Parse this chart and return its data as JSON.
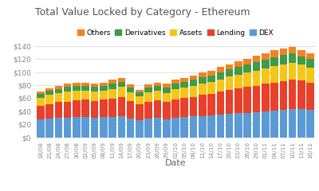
{
  "title": "Total Value Locked by Category - Ethereum",
  "xlabel": "Date",
  "categories": [
    "18/08",
    "21/08",
    "24/08",
    "27/08",
    "30/08",
    "02/09",
    "05/09",
    "08/09",
    "11/09",
    "14/09",
    "17/09",
    "20/09",
    "23/09",
    "26/09",
    "29/09",
    "02/10",
    "05/10",
    "08/10",
    "11/10",
    "14/10",
    "17/10",
    "20/10",
    "23/10",
    "26/10",
    "29/10",
    "01/11",
    "04/11",
    "07/11",
    "10/11",
    "13/11",
    "16/11"
  ],
  "series": {
    "DEX": [
      28,
      29,
      30,
      30,
      31,
      31,
      30,
      31,
      31,
      32,
      29,
      27,
      29,
      30,
      28,
      30,
      31,
      32,
      33,
      34,
      35,
      36,
      37,
      38,
      39,
      40,
      41,
      42,
      44,
      43,
      42
    ],
    "Lending": [
      20,
      22,
      24,
      25,
      26,
      27,
      26,
      27,
      28,
      30,
      27,
      24,
      26,
      27,
      26,
      28,
      29,
      30,
      32,
      33,
      35,
      37,
      38,
      39,
      40,
      42,
      43,
      44,
      45,
      44,
      42
    ],
    "Assets": [
      13,
      14,
      14,
      15,
      15,
      14,
      14,
      14,
      15,
      15,
      13,
      12,
      14,
      14,
      14,
      16,
      16,
      17,
      17,
      18,
      19,
      20,
      21,
      22,
      23,
      24,
      25,
      26,
      25,
      24,
      23
    ],
    "Derivatives": [
      5,
      6,
      6,
      7,
      7,
      7,
      7,
      7,
      8,
      8,
      7,
      6,
      7,
      8,
      8,
      8,
      9,
      9,
      10,
      10,
      11,
      11,
      12,
      12,
      13,
      13,
      14,
      14,
      14,
      13,
      13
    ],
    "Others": [
      4,
      4,
      5,
      5,
      5,
      5,
      5,
      5,
      6,
      6,
      5,
      4,
      5,
      5,
      6,
      6,
      6,
      7,
      7,
      7,
      8,
      8,
      9,
      9,
      10,
      9,
      10,
      10,
      10,
      9,
      9
    ]
  },
  "colors": {
    "Others": "#f4821e",
    "Derivatives": "#3d9b4a",
    "Assets": "#f5c518",
    "Lending": "#e8402a",
    "DEX": "#5b9bd5"
  },
  "stack_order": [
    "DEX",
    "Lending",
    "Assets",
    "Derivatives",
    "Others"
  ],
  "legend_order": [
    "Others",
    "Derivatives",
    "Assets",
    "Lending",
    "DEX"
  ],
  "ylim": [
    0,
    140
  ],
  "yticks": [
    0,
    20,
    40,
    60,
    80,
    100,
    120,
    140
  ],
  "ytick_labels": [
    "$0",
    "$20",
    "$40",
    "$60",
    "$80",
    "$100",
    "$120",
    "$140"
  ],
  "background_color": "#ffffff",
  "grid_color": "#e0e0e0",
  "title_color": "#555555",
  "label_color": "#666666",
  "tick_color": "#888888"
}
